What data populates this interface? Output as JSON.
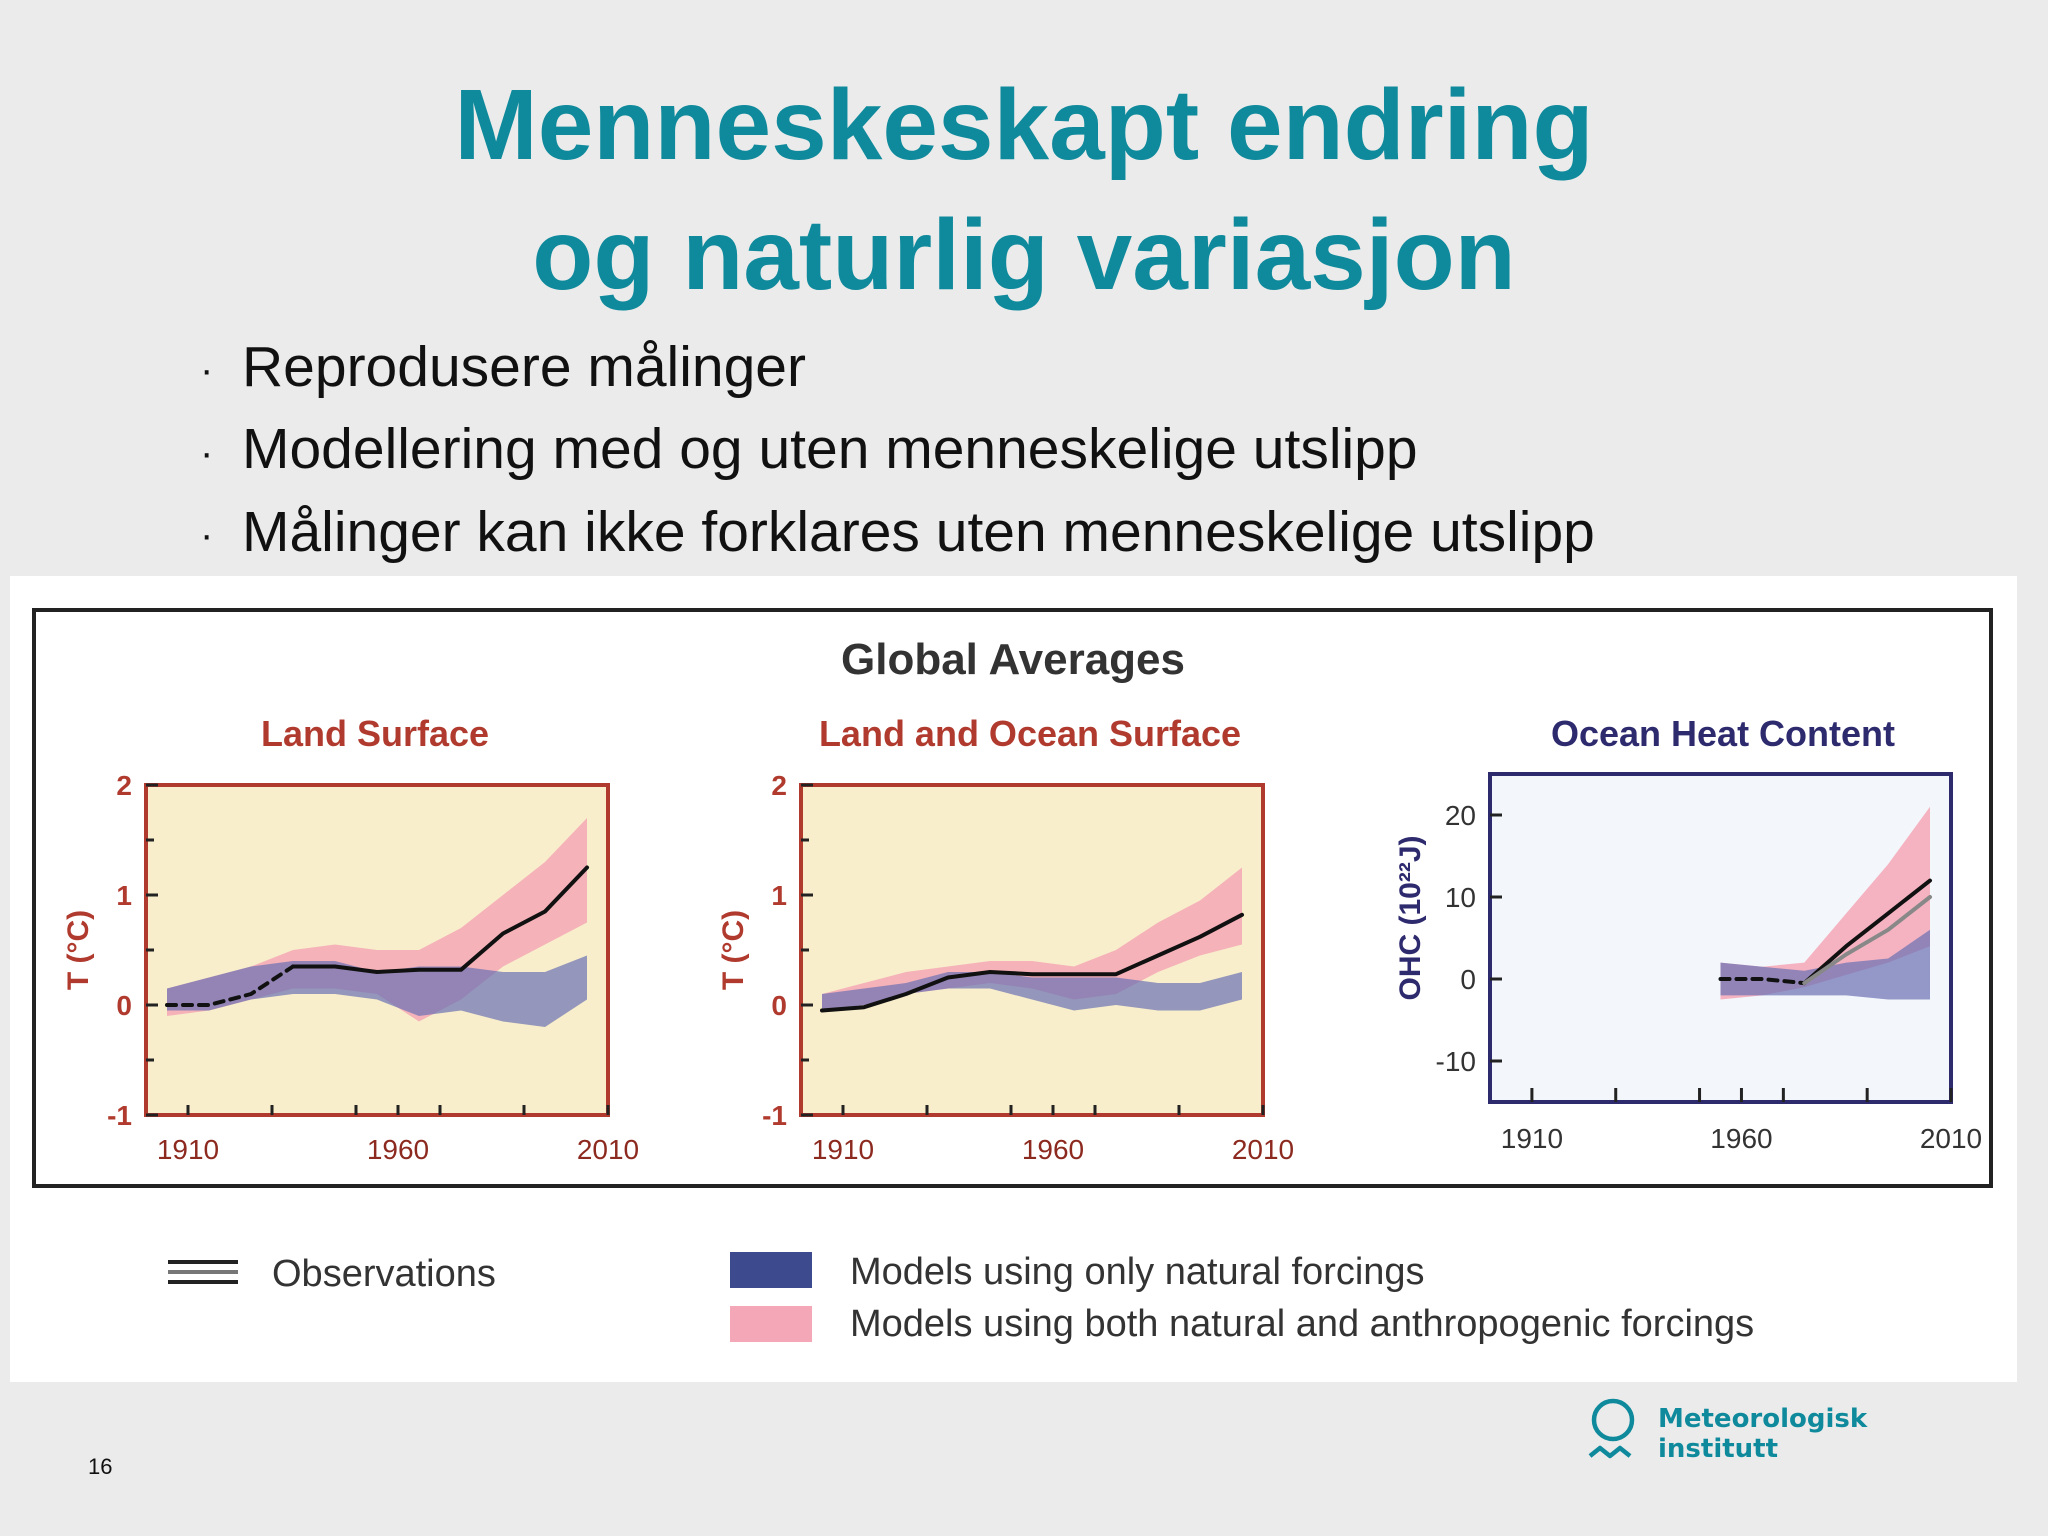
{
  "slide": {
    "title_line1": "Menneskeskapt endring",
    "title_line2": "og naturlig variasjon",
    "bullets": [
      "Reprodusere målinger",
      "Modellering med og uten menneskelige utslipp",
      "Målinger kan ikke forklares uten menneskelige utslipp"
    ],
    "page_number": "16",
    "logo": {
      "line1": "Meteorologisk",
      "line2": "institutt",
      "icon": "met-logo-icon"
    }
  },
  "colors": {
    "title": "#0f8a9c",
    "natural": "#6a70b4",
    "anthropogenic": "#f4a7b6",
    "observations": "#111111",
    "temp_panel_bg": "#f8eecb",
    "temp_frame": "#b03a2e",
    "ohc_panel_bg": "#f3f6fb",
    "ohc_frame": "#2e2a6e"
  },
  "chart_data": {
    "title": "Global Averages",
    "panels": [
      {
        "type": "area",
        "title": "Land Surface",
        "ylabel": "T (°C)",
        "xlim": [
          1900,
          2010
        ],
        "ylim": [
          -1,
          2
        ],
        "xticks": [
          "1910",
          "1960",
          "2010"
        ],
        "yticks": [
          "2",
          "1",
          "0",
          "-1"
        ],
        "x": [
          1905,
          1915,
          1925,
          1935,
          1945,
          1955,
          1965,
          1975,
          1985,
          1995,
          2005
        ],
        "anthropogenic_band": {
          "lower": [
            -0.1,
            -0.05,
            0.05,
            0.15,
            0.15,
            0.1,
            -0.15,
            0.05,
            0.35,
            0.55,
            0.75
          ],
          "upper": [
            0.15,
            0.25,
            0.35,
            0.5,
            0.55,
            0.5,
            0.5,
            0.7,
            1.0,
            1.3,
            1.7
          ]
        },
        "natural_band": {
          "lower": [
            -0.05,
            -0.05,
            0.05,
            0.1,
            0.1,
            0.05,
            -0.1,
            -0.05,
            -0.15,
            -0.2,
            0.05
          ],
          "upper": [
            0.15,
            0.25,
            0.35,
            0.4,
            0.4,
            0.3,
            0.35,
            0.35,
            0.3,
            0.3,
            0.45
          ]
        },
        "observations": [
          {
            "x": [
              1905,
              1915,
              1925,
              1935
            ],
            "y": [
              0.0,
              0.0,
              0.1,
              0.35
            ],
            "style": "dashed"
          },
          {
            "x": [
              1935,
              1945,
              1955,
              1965,
              1975,
              1985,
              1995,
              2005
            ],
            "y": [
              0.35,
              0.35,
              0.3,
              0.32,
              0.32,
              0.65,
              0.85,
              1.25
            ],
            "style": "solid"
          }
        ]
      },
      {
        "type": "area",
        "title": "Land and Ocean Surface",
        "ylabel": "T (°C)",
        "xlim": [
          1900,
          2010
        ],
        "ylim": [
          -1,
          2
        ],
        "xticks": [
          "1910",
          "1960",
          "2010"
        ],
        "yticks": [
          "2",
          "1",
          "0",
          "-1"
        ],
        "x": [
          1905,
          1915,
          1925,
          1935,
          1945,
          1955,
          1965,
          1975,
          1985,
          1995,
          2005
        ],
        "anthropogenic_band": {
          "lower": [
            -0.05,
            0.0,
            0.1,
            0.15,
            0.2,
            0.15,
            0.05,
            0.1,
            0.3,
            0.45,
            0.55
          ],
          "upper": [
            0.1,
            0.2,
            0.3,
            0.35,
            0.4,
            0.4,
            0.35,
            0.5,
            0.75,
            0.95,
            1.25
          ]
        },
        "natural_band": {
          "lower": [
            -0.05,
            0.0,
            0.1,
            0.15,
            0.15,
            0.05,
            -0.05,
            0.0,
            -0.05,
            -0.05,
            0.05
          ],
          "upper": [
            0.1,
            0.15,
            0.2,
            0.3,
            0.3,
            0.25,
            0.25,
            0.25,
            0.2,
            0.2,
            0.3
          ]
        },
        "observations": [
          {
            "x": [
              1905,
              1915,
              1925,
              1935,
              1945,
              1955,
              1965,
              1975,
              1985,
              1995,
              2005
            ],
            "y": [
              -0.05,
              -0.02,
              0.1,
              0.25,
              0.3,
              0.28,
              0.28,
              0.28,
              0.45,
              0.62,
              0.82
            ],
            "style": "solid"
          }
        ]
      },
      {
        "type": "area",
        "title": "Ocean Heat Content",
        "ylabel": "OHC (10²²J)",
        "xlim": [
          1900,
          2010
        ],
        "ylim": [
          -15,
          25
        ],
        "xticks": [
          "1910",
          "1960",
          "2010"
        ],
        "yticks": [
          "20",
          "10",
          "0",
          "-10"
        ],
        "x": [
          1955,
          1965,
          1975,
          1985,
          1995,
          2005
        ],
        "anthropogenic_band": {
          "lower": [
            -2.5,
            -2.0,
            -1.0,
            0.5,
            2.0,
            4.0
          ],
          "upper": [
            2.0,
            1.5,
            2.0,
            8.0,
            14.0,
            21.0
          ]
        },
        "natural_band": {
          "lower": [
            -2.0,
            -2.0,
            -2.0,
            -2.0,
            -2.5,
            -2.5
          ],
          "upper": [
            2.0,
            1.5,
            1.0,
            2.0,
            2.5,
            6.0
          ]
        },
        "observations": [
          {
            "x": [
              1955,
              1965,
              1975
            ],
            "y": [
              0.0,
              0.0,
              -0.5
            ],
            "style": "dashed"
          },
          {
            "x": [
              1975,
              1985,
              1995,
              2005
            ],
            "y": [
              -0.5,
              4.0,
              8.0,
              12.0
            ],
            "style": "solid"
          },
          {
            "x": [
              1975,
              1985,
              1995,
              2005
            ],
            "y": [
              -0.5,
              3.0,
              6.0,
              10.0
            ],
            "style": "solid-gray"
          }
        ]
      }
    ],
    "legend": [
      {
        "label": "Observations",
        "key": "observations"
      },
      {
        "label": "Models using only natural forcings",
        "key": "natural"
      },
      {
        "label": "Models using both natural and anthropogenic forcings",
        "key": "anthropogenic"
      }
    ]
  }
}
